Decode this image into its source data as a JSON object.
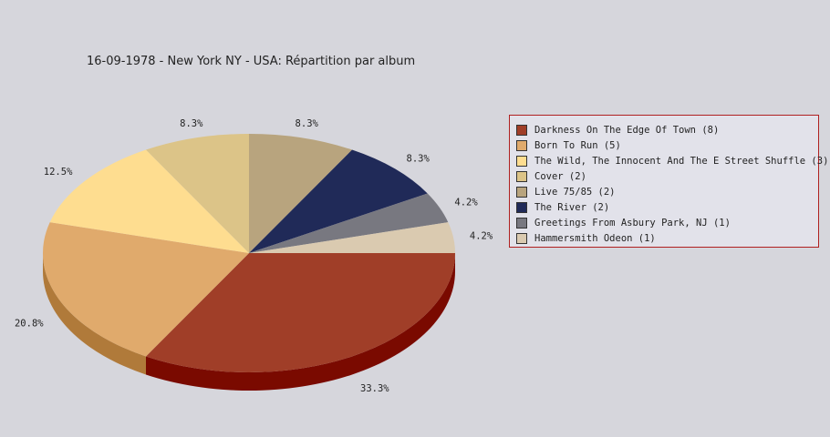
{
  "chart_data": {
    "type": "pie",
    "title": "16-09-1978 - New York NY - USA:  Répartition par album",
    "legend_position": "right",
    "slices": [
      {
        "label": "Darkness On The Edge Of Town (8)",
        "value": 8,
        "percent_label": "33.3%",
        "color": "#a03e28",
        "side_color": "#7a0a00"
      },
      {
        "label": "Born To Run (5)",
        "value": 5,
        "percent_label": "20.8%",
        "color": "#e0aa6c",
        "side_color": "#b07a3a"
      },
      {
        "label": "The Wild, The Innocent And The E Street Shuffle (3)",
        "value": 3,
        "percent_label": "12.5%",
        "color": "#fedd90",
        "side_color": "#c8a860"
      },
      {
        "label": "Cover (2)",
        "value": 2,
        "percent_label": "8.3%",
        "color": "#dcc488",
        "side_color": "#a89058"
      },
      {
        "label": "Live 75/85 (2)",
        "value": 2,
        "percent_label": "8.3%",
        "color": "#b8a47e",
        "side_color": "#887450"
      },
      {
        "label": "The River (2)",
        "value": 2,
        "percent_label": "8.3%",
        "color": "#202a58",
        "side_color": "#101838"
      },
      {
        "label": "Greetings From Asbury Park, NJ (1)",
        "value": 1,
        "percent_label": "4.2%",
        "color": "#787880",
        "side_color": "#505058"
      },
      {
        "label": "Hammersmith Odeon  (1)",
        "value": 1,
        "percent_label": "4.2%",
        "color": "#dacab0",
        "side_color": "#aa9a80"
      }
    ]
  }
}
